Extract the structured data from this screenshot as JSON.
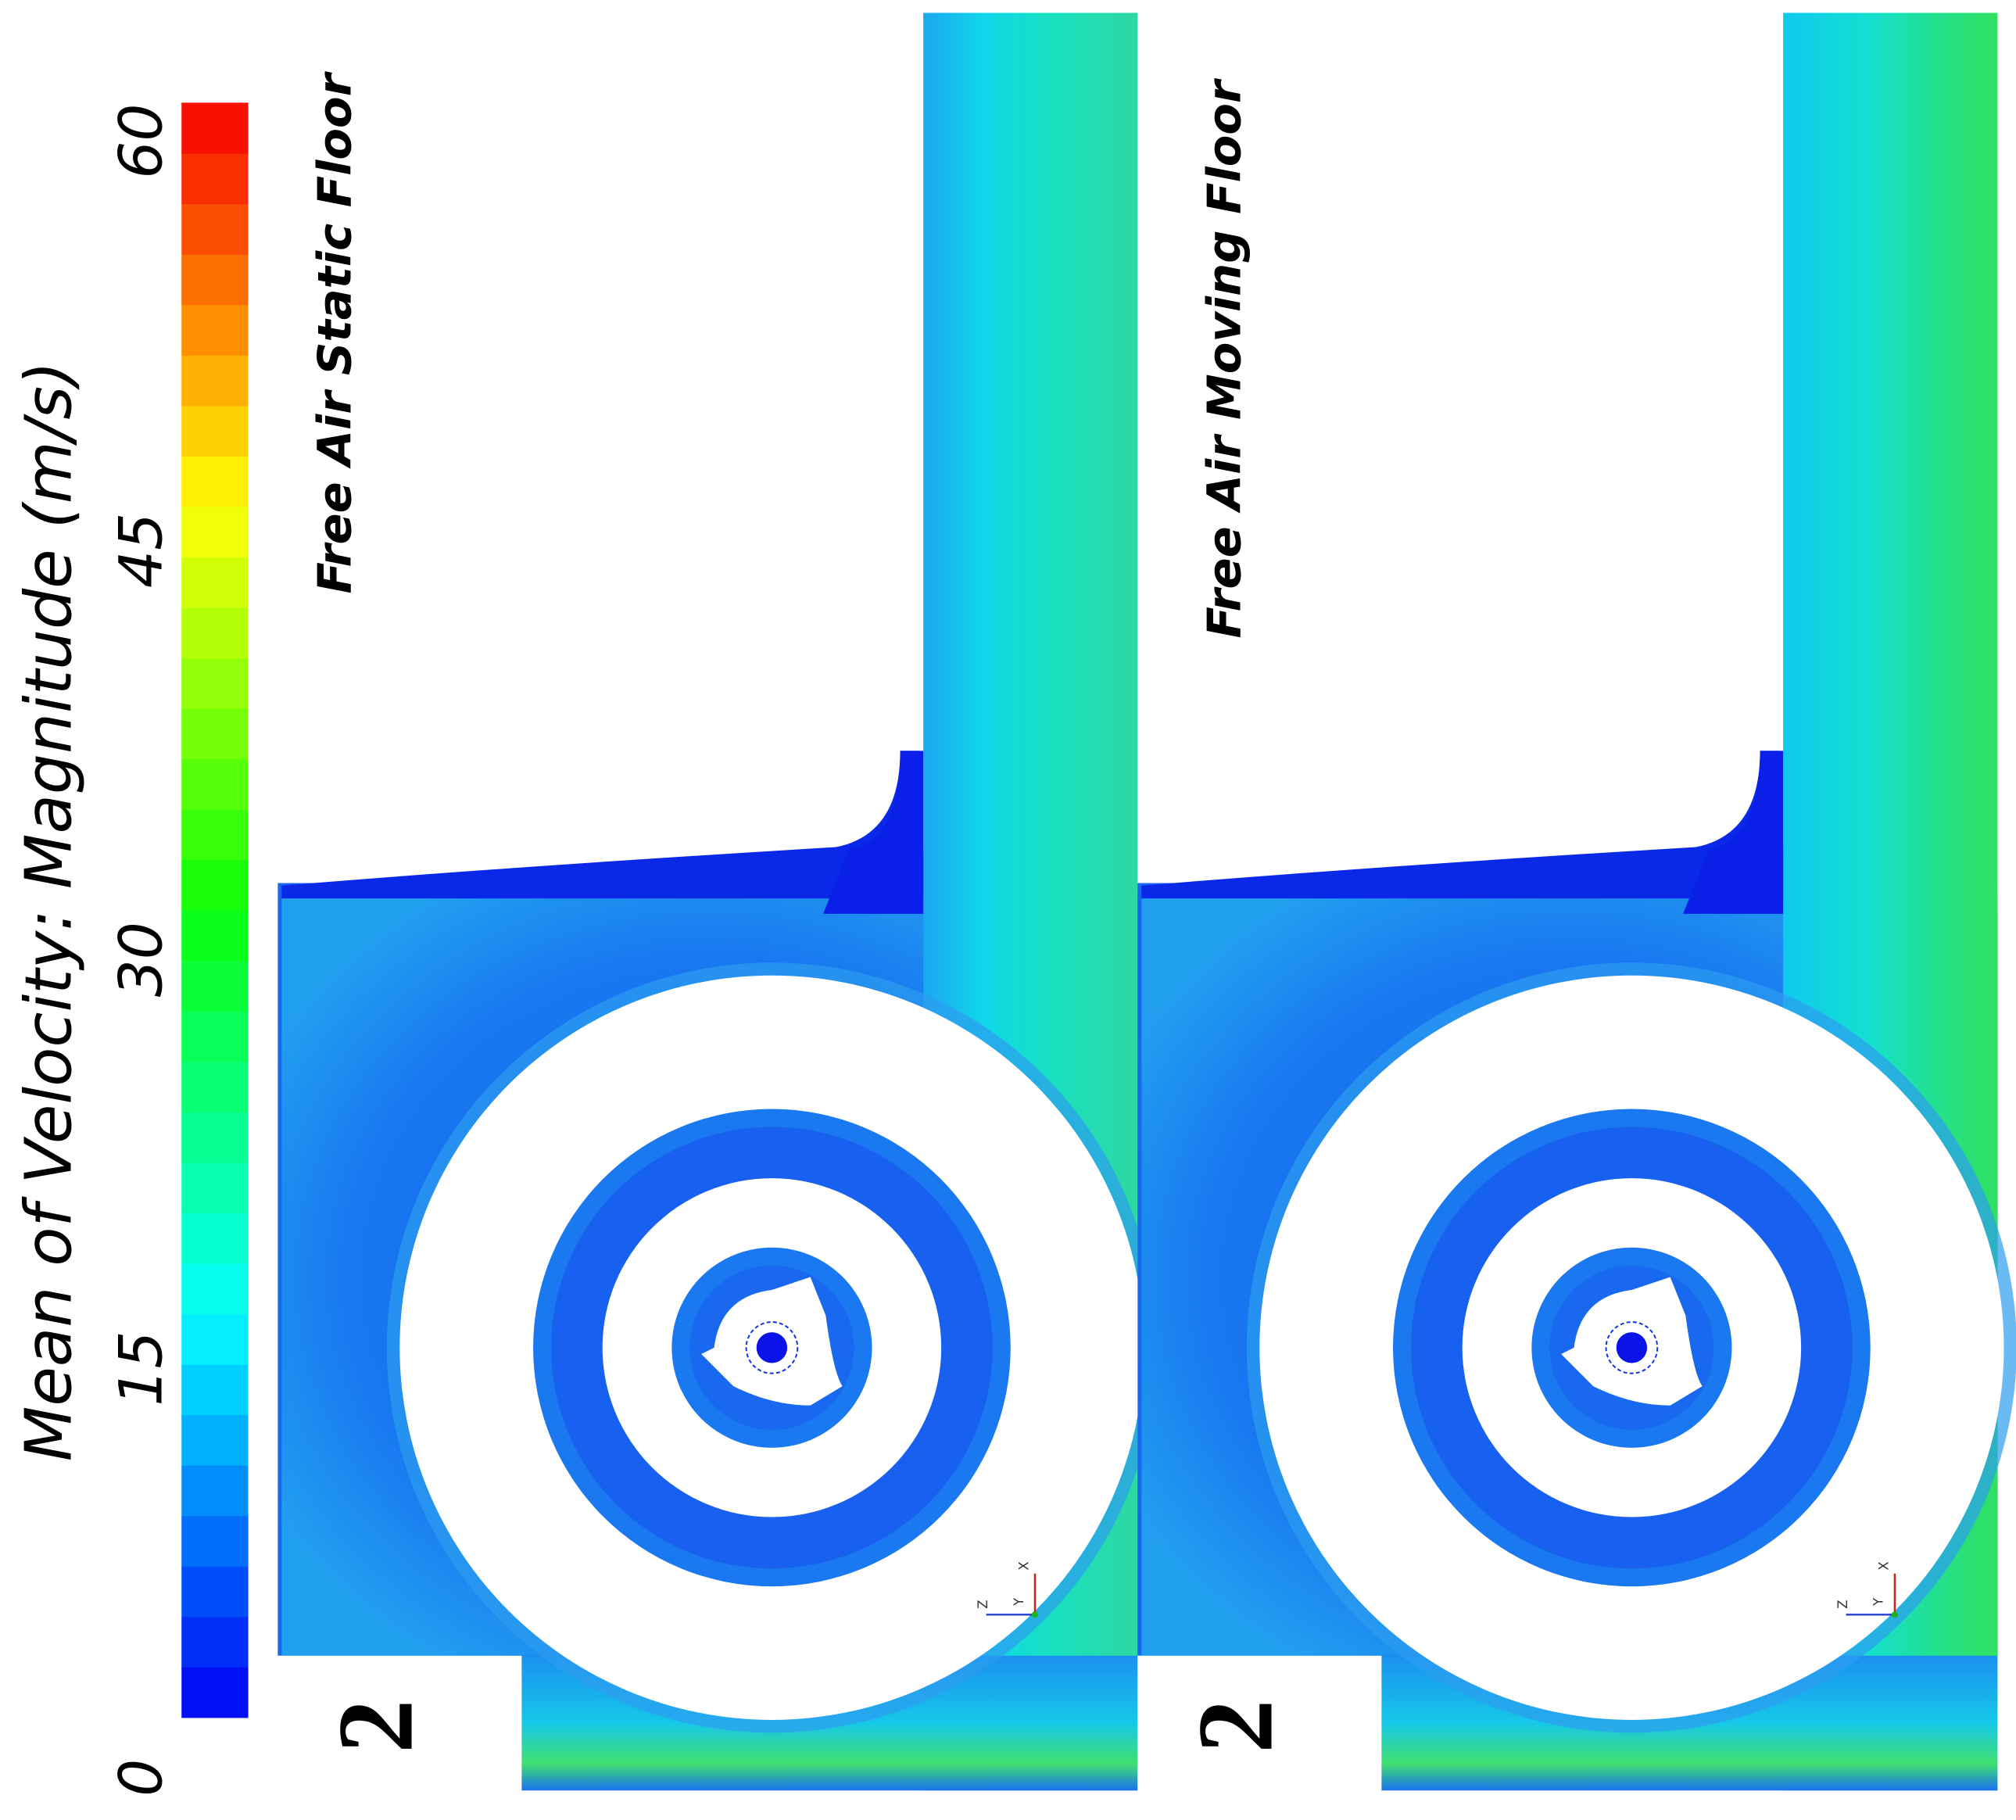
{
  "colorbar": {
    "title": "Mean of Velocity: Magnitude (m/s)",
    "range": [
      0,
      60
    ],
    "ticks": [
      0,
      15,
      30,
      45,
      60
    ]
  },
  "panels": [
    {
      "title": "Free Air Static Floor",
      "label": "2",
      "axes": [
        "X",
        "Y",
        "Z"
      ]
    },
    {
      "title": "Free Air Moving Floor",
      "label": "2",
      "axes": [
        "X",
        "Y",
        "Z"
      ]
    }
  ]
}
